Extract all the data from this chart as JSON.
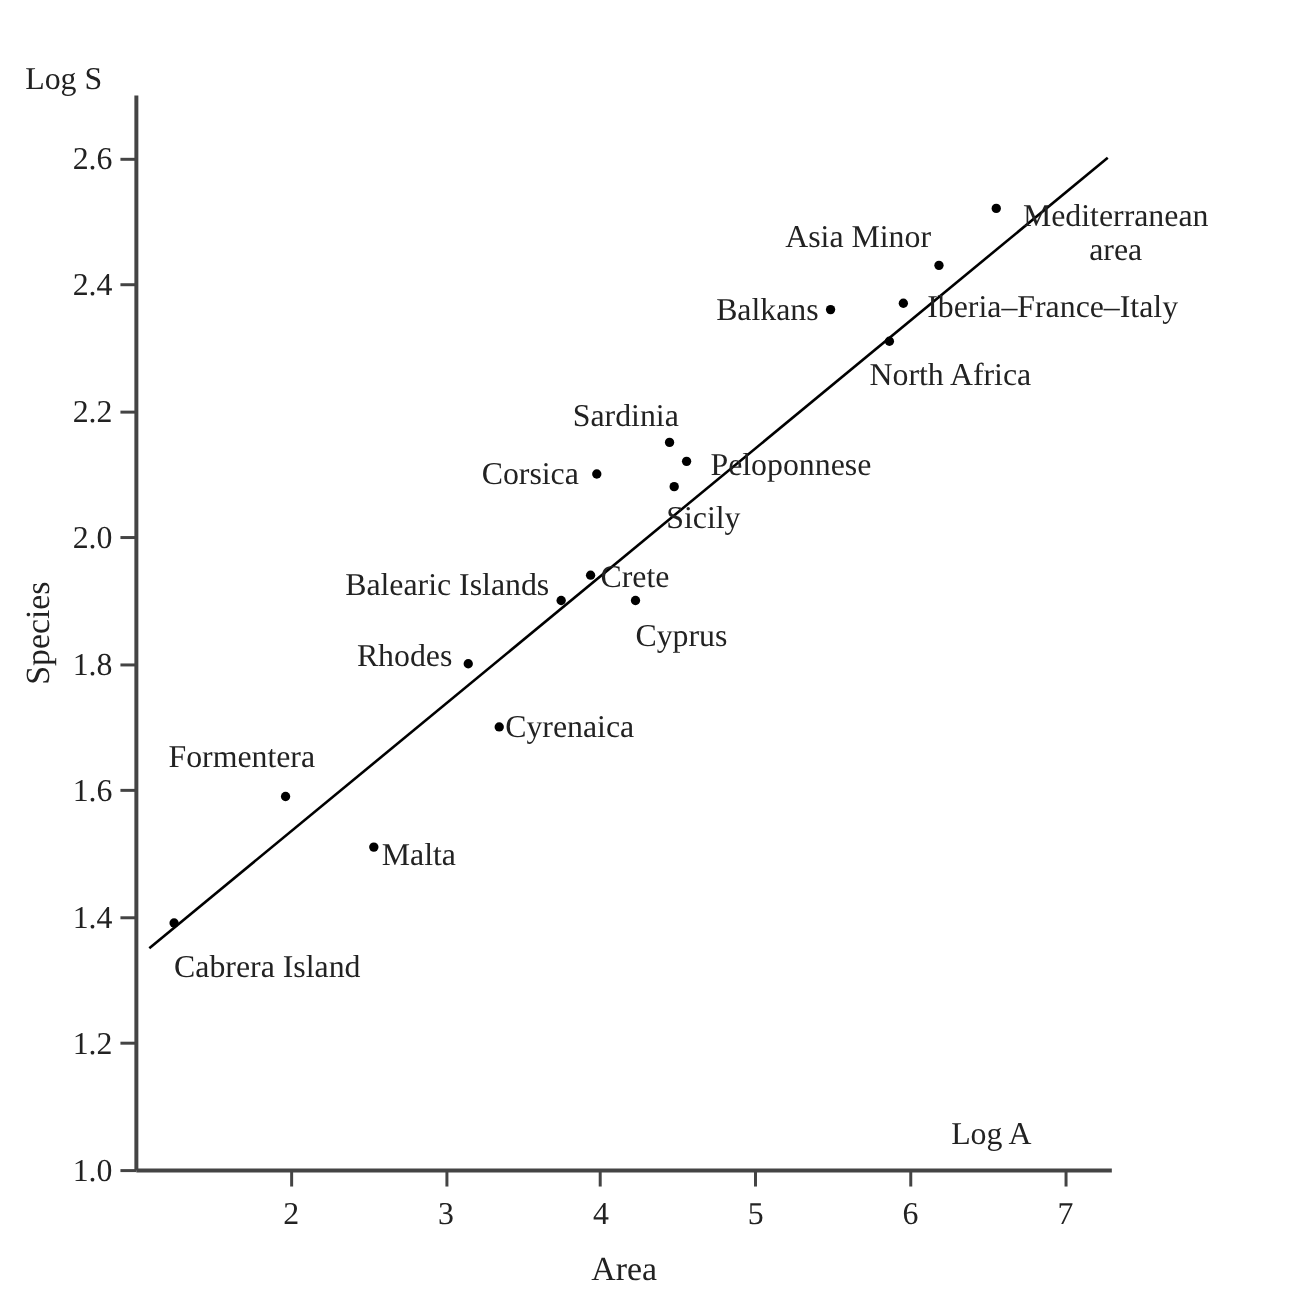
{
  "chart_data": {
    "type": "scatter",
    "xlabel": "Area",
    "ylabel": "Species",
    "x": [
      1.25,
      1.97,
      2.54,
      3.15,
      3.35,
      3.75,
      3.94,
      3.98,
      4.23,
      4.45,
      4.56,
      4.48,
      5.49,
      5.87,
      5.96,
      6.19,
      6.56
    ],
    "series": [
      {
        "color": "#000000",
        "values": [
          1.39,
          1.59,
          1.51,
          1.8,
          1.7,
          1.9,
          1.94,
          2.1,
          1.9,
          2.15,
          2.12,
          2.08,
          2.36,
          2.31,
          2.37,
          2.43,
          2.52
        ]
      },
      {
        "type": "line",
        "color": "#000000",
        "x": [
          1.09,
          7.28
        ],
        "values": [
          1.35,
          2.6
        ],
        "marker": "none",
        "line_style": "solid"
      }
    ],
    "annotations": [
      {
        "text": "Cabrera Island",
        "x": 1.25,
        "y": 1.39
      },
      {
        "text": "Formentera",
        "x": 1.97,
        "y": 1.59
      },
      {
        "text": "Malta",
        "x": 2.54,
        "y": 1.51
      },
      {
        "text": "Rhodes",
        "x": 3.15,
        "y": 1.8
      },
      {
        "text": "Cyrenaica",
        "x": 3.35,
        "y": 1.7
      },
      {
        "text": "Balearic Islands",
        "x": 3.75,
        "y": 1.9
      },
      {
        "text": "Crete",
        "x": 3.94,
        "y": 1.94
      },
      {
        "text": "Corsica",
        "x": 3.98,
        "y": 2.1
      },
      {
        "text": "Cyprus",
        "x": 4.23,
        "y": 1.9
      },
      {
        "text": "Sardinia",
        "x": 4.45,
        "y": 2.15
      },
      {
        "text": "Peloponnese",
        "x": 4.56,
        "y": 2.12
      },
      {
        "text": "Sicily",
        "x": 4.48,
        "y": 2.08
      },
      {
        "text": "Balkans",
        "x": 5.49,
        "y": 2.36
      },
      {
        "text": "North Africa",
        "x": 5.87,
        "y": 2.31
      },
      {
        "text": "Iberia–France–Italy",
        "x": 5.96,
        "y": 2.37
      },
      {
        "text": "Asia Minor",
        "x": 6.19,
        "y": 2.43
      },
      {
        "text": "Mediterranean area",
        "x": 6.56,
        "y": 2.52
      },
      "Log S",
      "Log A"
    ],
    "xlim": [
      1,
      7.3
    ],
    "ylim": [
      1.0,
      2.7
    ],
    "xticks": [
      2,
      3,
      4,
      5,
      6,
      7
    ],
    "yticks": [
      {
        "value": 1,
        "label": "1.0"
      },
      1.2,
      1.4,
      1.6,
      1.8,
      {
        "value": 2,
        "label": "2.0"
      },
      2.2,
      2.4,
      2.6
    ],
    "grid": false,
    "marker": "circle"
  }
}
